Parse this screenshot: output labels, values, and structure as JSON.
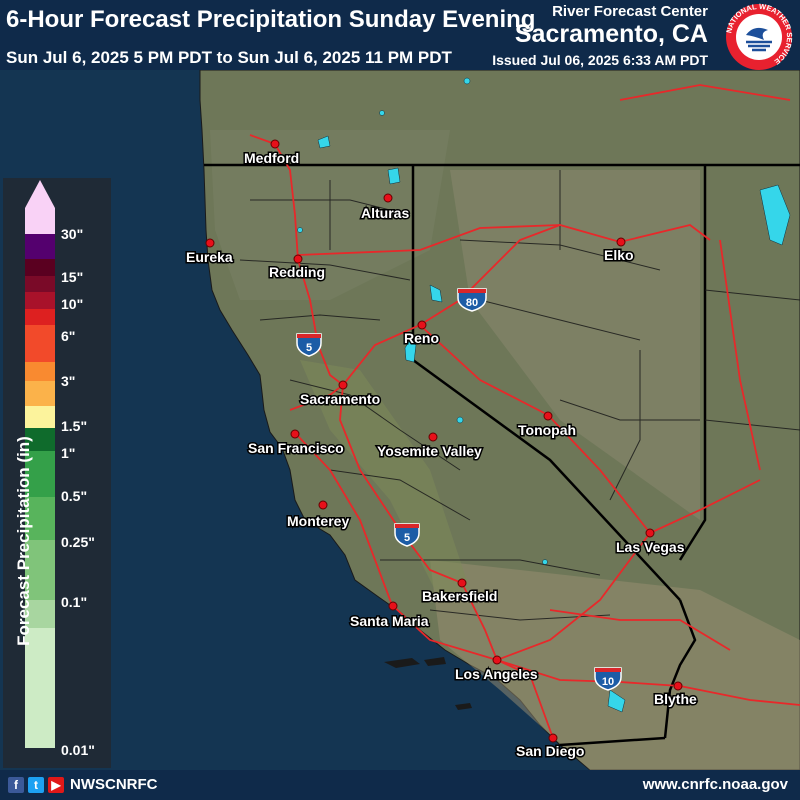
{
  "header": {
    "title": "6-Hour Forecast Precipitation Sunday Evening",
    "valid_range": "Sun Jul 6, 2025 5 PM PDT to Sun Jul 6, 2025 11 PM PDT",
    "rfc_label": "River Forecast Center",
    "rfc_name": "Sacramento, CA",
    "issued": "Issued Jul 06, 2025 6:33 AM PDT"
  },
  "logo": {
    "text": "NATIONAL WEATHER SERVICE"
  },
  "legend": {
    "title": "Forecast Precipitation (in)",
    "labels": [
      "30\"",
      "15\"",
      "10\"",
      "6\"",
      "3\"",
      "1.5\"",
      "1\"",
      "0.5\"",
      "0.25\"",
      "0.1\"",
      "0.01\""
    ],
    "colors": {
      "top_arrow": "#f9d2f6",
      "violet": "#54006e",
      "dark_maroon": "#5a0020",
      "maroon": "#7a0a28",
      "crimson": "#a8122a",
      "red": "#dd2020",
      "orange_red": "#f24a2a",
      "orange": "#f98a30",
      "light_orange": "#fbb24a",
      "yellow": "#fcf39c",
      "dark_green": "#0f6b2c",
      "green": "#34a049",
      "mid_green": "#58b45c",
      "light_green": "#80c47a",
      "pale_green": "#a8d6a0",
      "palest_green": "#cdebc5"
    }
  },
  "cities": [
    {
      "name": "Medford"
    },
    {
      "name": "Alturas"
    },
    {
      "name": "Eureka"
    },
    {
      "name": "Redding"
    },
    {
      "name": "Elko"
    },
    {
      "name": "Reno"
    },
    {
      "name": "Sacramento"
    },
    {
      "name": "Tonopah"
    },
    {
      "name": "San Francisco"
    },
    {
      "name": "Yosemite Valley"
    },
    {
      "name": "Monterey"
    },
    {
      "name": "Las Vegas"
    },
    {
      "name": "Bakersfield"
    },
    {
      "name": "Santa Maria"
    },
    {
      "name": "Los Angeles"
    },
    {
      "name": "Blythe"
    },
    {
      "name": "San Diego"
    }
  ],
  "highways": [
    "5",
    "80",
    "5",
    "10"
  ],
  "map_colors": {
    "ocean": "#143552",
    "land": "#6e7758",
    "border": "#000000",
    "road": "#e8282a",
    "lake": "#35d6ea"
  },
  "footer": {
    "social_handle": "NWSCNRFC",
    "website": "www.cnrfc.noaa.gov",
    "icons": [
      "facebook-icon",
      "twitter-icon",
      "youtube-icon"
    ]
  }
}
